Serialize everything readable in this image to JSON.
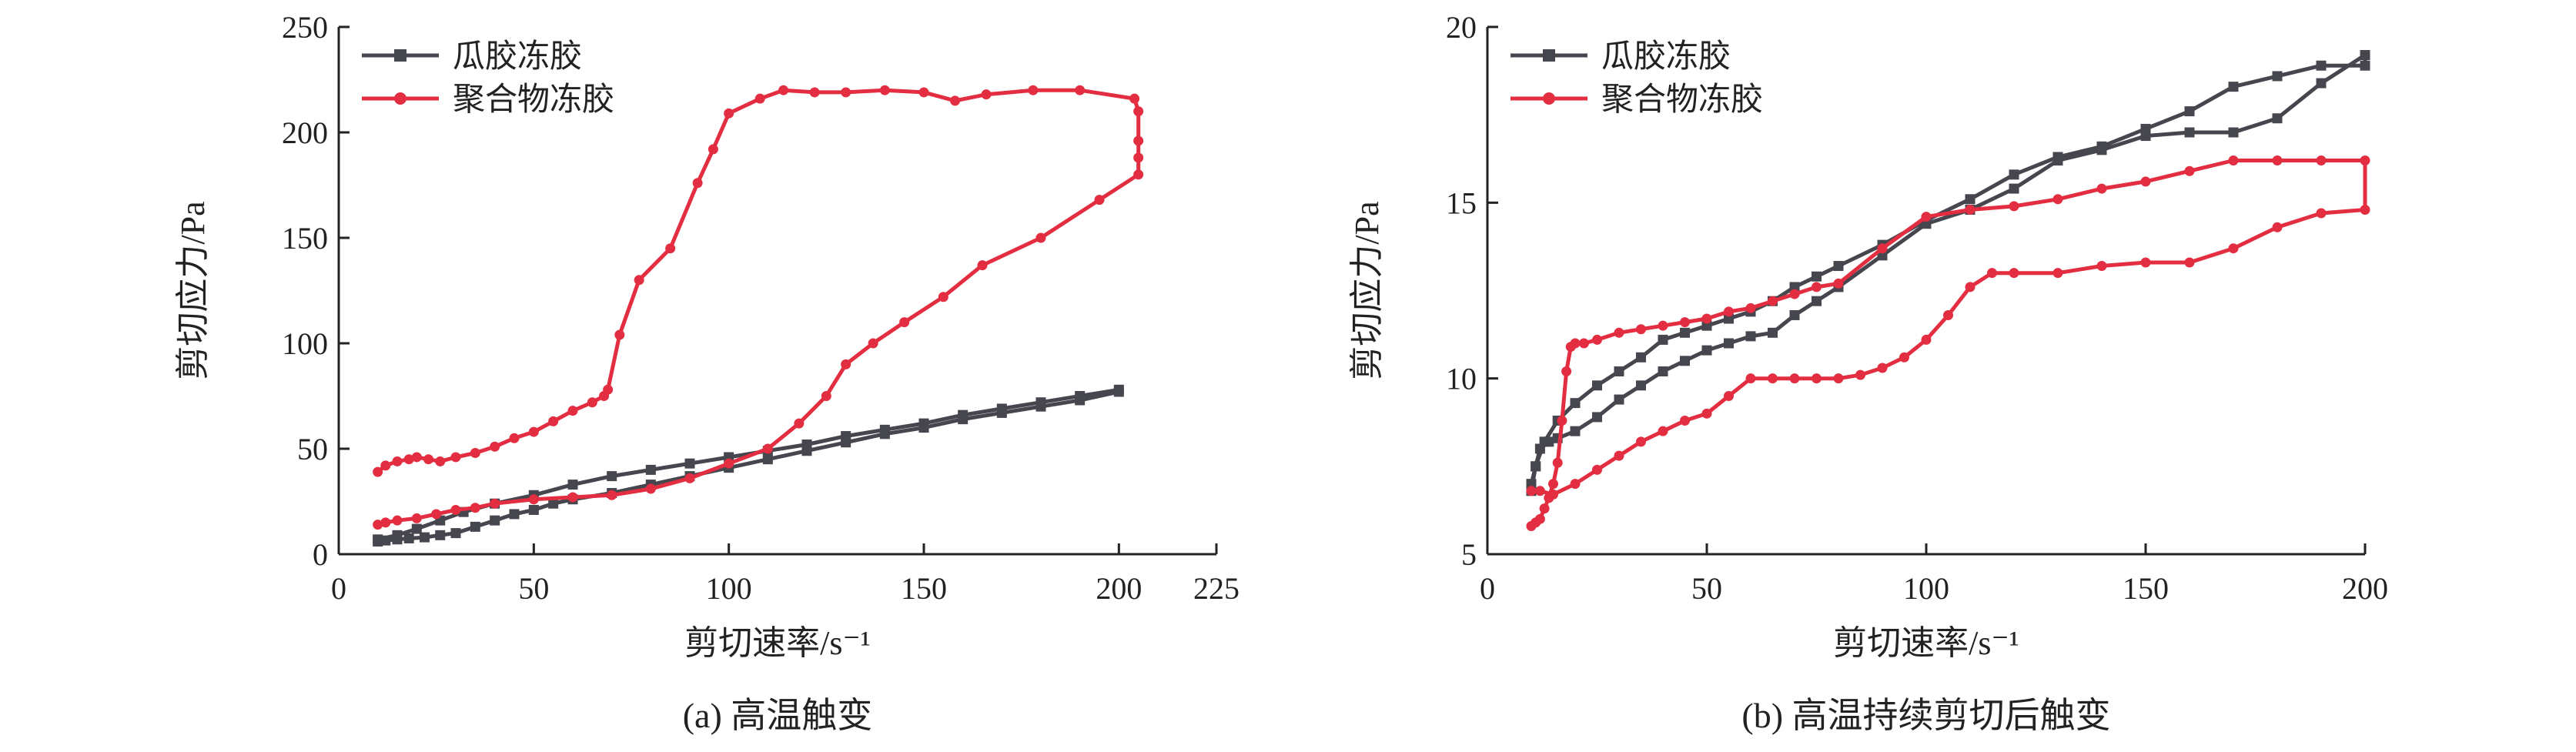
{
  "chart_data": [
    {
      "type": "line",
      "caption": "(a) 高温触变",
      "xlabel": "剪切速率/s⁻¹",
      "ylabel": "剪切应力/Pa",
      "xlim": [
        0,
        225
      ],
      "ylim": [
        0,
        250
      ],
      "xticks": [
        0,
        50,
        100,
        150,
        200,
        225
      ],
      "yticks": [
        0,
        50,
        100,
        150,
        200,
        250
      ],
      "legend_position": "top-left",
      "series": [
        {
          "name": "瓜胶冻胶",
          "color": "#46464f",
          "marker": "square",
          "x": [
            10,
            12,
            15,
            18,
            22,
            26,
            30,
            35,
            40,
            45,
            50,
            55,
            60,
            70,
            80,
            90,
            100,
            110,
            120,
            130,
            140,
            150,
            160,
            170,
            180,
            190,
            200,
            200,
            190,
            180,
            170,
            160,
            150,
            140,
            130,
            120,
            110,
            100,
            90,
            80,
            70,
            60,
            50,
            40,
            32,
            26,
            20,
            15,
            10
          ],
          "y": [
            6,
            6.5,
            7,
            7.5,
            8,
            9,
            10,
            13,
            16,
            19,
            21,
            24,
            26,
            29,
            33,
            37,
            41,
            45,
            49,
            53,
            57,
            60,
            64,
            67,
            70,
            73,
            77,
            78,
            75,
            72,
            69,
            66,
            62,
            59,
            56,
            52,
            49,
            46,
            43,
            40,
            37,
            33,
            28,
            24,
            20,
            16,
            12,
            9,
            7
          ]
        },
        {
          "name": "聚合物冻胶",
          "color": "#e32d40",
          "marker": "circle",
          "x": [
            10,
            12,
            15,
            18,
            20,
            23,
            26,
            30,
            35,
            40,
            45,
            50,
            55,
            60,
            65,
            68,
            69,
            72,
            77,
            85,
            92,
            96,
            100,
            108,
            114,
            122,
            130,
            140,
            150,
            158,
            166,
            178,
            190,
            204,
            205,
            205,
            205,
            205,
            195,
            180,
            165,
            155,
            145,
            137,
            130,
            125,
            118,
            110,
            100,
            90,
            80,
            70,
            60,
            50,
            40,
            35,
            30,
            25,
            20,
            15,
            12,
            10
          ],
          "y": [
            39,
            42,
            44,
            45,
            46,
            45,
            44,
            46,
            48,
            51,
            55,
            58,
            63,
            68,
            72,
            75,
            78,
            104,
            130,
            145,
            176,
            192,
            209,
            216,
            220,
            219,
            219,
            220,
            219,
            215,
            218,
            220,
            220,
            216,
            210,
            196,
            188,
            180,
            168,
            150,
            137,
            122,
            110,
            100,
            90,
            75,
            62,
            50,
            43,
            36,
            31,
            28,
            27,
            26,
            24,
            22,
            21,
            19,
            17,
            16,
            15,
            14
          ]
        }
      ]
    },
    {
      "type": "line",
      "caption": "(b) 高温持续剪切后触变",
      "xlabel": "剪切速率/s⁻¹",
      "ylabel": "剪切应力/Pa",
      "xlim": [
        0,
        200
      ],
      "ylim": [
        5,
        20
      ],
      "xticks": [
        0,
        50,
        100,
        150,
        200
      ],
      "yticks": [
        5,
        10,
        15,
        20
      ],
      "legend_position": "top-left",
      "series": [
        {
          "name": "瓜胶冻胶",
          "color": "#46464f",
          "marker": "square",
          "x": [
            10,
            11,
            12,
            14,
            16,
            20,
            25,
            30,
            35,
            40,
            45,
            50,
            55,
            60,
            65,
            70,
            75,
            80,
            90,
            100,
            110,
            120,
            130,
            140,
            150,
            160,
            170,
            180,
            190,
            200,
            200,
            190,
            180,
            170,
            160,
            150,
            140,
            130,
            120,
            110,
            100,
            90,
            80,
            75,
            70,
            65,
            60,
            55,
            50,
            45,
            40,
            35,
            30,
            25,
            20,
            16,
            13,
            11,
            10
          ],
          "y": [
            6.8,
            7.5,
            8.0,
            8.2,
            8.3,
            8.5,
            8.9,
            9.4,
            9.8,
            10.2,
            10.5,
            10.8,
            11.0,
            11.2,
            11.3,
            11.8,
            12.2,
            12.6,
            13.5,
            14.4,
            14.8,
            15.4,
            16.2,
            16.5,
            16.9,
            17.0,
            17.0,
            17.4,
            18.4,
            19.2,
            18.9,
            18.9,
            18.6,
            18.3,
            17.6,
            17.1,
            16.6,
            16.3,
            15.8,
            15.1,
            14.5,
            13.8,
            13.2,
            12.9,
            12.6,
            12.2,
            11.9,
            11.7,
            11.5,
            11.3,
            11.1,
            10.6,
            10.2,
            9.8,
            9.3,
            8.8,
            8.2,
            7.5,
            7.0
          ]
        },
        {
          "name": "聚合物冻胶",
          "color": "#e32d40",
          "marker": "circle",
          "x": [
            10,
            11,
            12,
            13,
            14,
            15,
            16,
            17,
            18,
            19,
            20,
            22,
            25,
            30,
            35,
            40,
            45,
            50,
            55,
            60,
            65,
            70,
            75,
            80,
            90,
            100,
            110,
            120,
            130,
            140,
            150,
            160,
            170,
            180,
            190,
            200,
            200,
            190,
            180,
            170,
            160,
            150,
            140,
            130,
            120,
            115,
            110,
            105,
            100,
            95,
            90,
            85,
            80,
            75,
            70,
            65,
            60,
            55,
            50,
            45,
            40,
            35,
            30,
            25,
            20,
            15,
            12,
            10
          ],
          "y": [
            5.8,
            5.9,
            6.0,
            6.3,
            6.6,
            7.0,
            7.6,
            8.8,
            10.2,
            10.9,
            11.0,
            11.0,
            11.1,
            11.3,
            11.4,
            11.5,
            11.6,
            11.7,
            11.9,
            12.0,
            12.2,
            12.4,
            12.6,
            12.7,
            13.7,
            14.6,
            14.8,
            14.9,
            15.1,
            15.4,
            15.6,
            15.9,
            16.2,
            16.2,
            16.2,
            16.2,
            14.8,
            14.7,
            14.3,
            13.7,
            13.3,
            13.3,
            13.2,
            13.0,
            13.0,
            13.0,
            12.6,
            11.8,
            11.1,
            10.6,
            10.3,
            10.1,
            10.0,
            10.0,
            10.0,
            10.0,
            10.0,
            9.5,
            9.0,
            8.8,
            8.5,
            8.2,
            7.8,
            7.4,
            7.0,
            6.7,
            6.8,
            6.8
          ]
        }
      ]
    }
  ]
}
